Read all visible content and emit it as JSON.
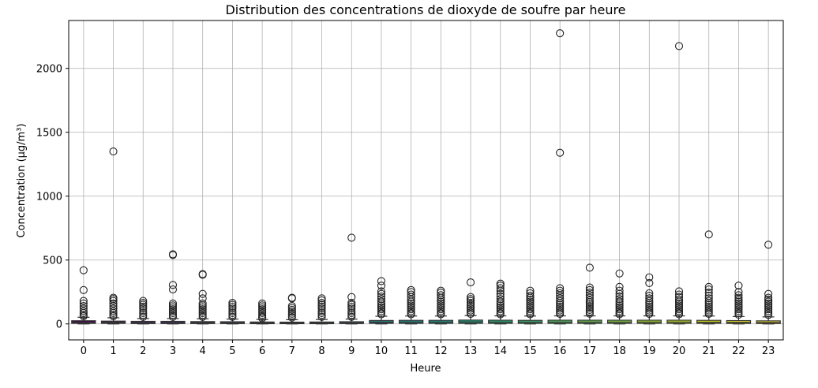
{
  "chart_data": {
    "type": "box",
    "title": "Distribution des concentrations de dioxyde de soufre par heure",
    "xlabel": "Heure",
    "ylabel": "Concentration (µg/m³)",
    "ylim": [
      -125,
      2375
    ],
    "yticks": [
      0,
      500,
      1000,
      1500,
      2000
    ],
    "grid": true,
    "categories": [
      "0",
      "1",
      "2",
      "3",
      "4",
      "5",
      "6",
      "7",
      "8",
      "9",
      "10",
      "11",
      "12",
      "13",
      "14",
      "15",
      "16",
      "17",
      "18",
      "19",
      "20",
      "21",
      "22",
      "23"
    ],
    "colors": [
      "#44014f",
      "#470e5e",
      "#481b6d",
      "#472a79",
      "#443782",
      "#3e4a89",
      "#39568c",
      "#33638d",
      "#2e6e8e",
      "#297a8e",
      "#25838d",
      "#218f8c",
      "#1f998a",
      "#22a884",
      "#2db27d",
      "#3dbc74",
      "#53c567",
      "#6ece58",
      "#8ad547",
      "#a8db34",
      "#c3e02a",
      "#dde318",
      "#f0e51c",
      "#fde725"
    ],
    "boxes": [
      {
        "q1": 5,
        "median": 12,
        "q3": 25,
        "whisker_low": 0,
        "whisker_high": 52,
        "outliers": [
          420,
          265,
          180,
          160,
          140,
          120,
          100,
          85,
          70,
          60
        ]
      },
      {
        "q1": 5,
        "median": 13,
        "q3": 22,
        "whisker_low": 0,
        "whisker_high": 48,
        "outliers": [
          1350,
          205,
          195,
          180,
          160,
          140,
          120,
          100,
          85,
          70,
          60
        ]
      },
      {
        "q1": 3,
        "median": 10,
        "q3": 20,
        "whisker_low": 0,
        "whisker_high": 42,
        "outliers": [
          180,
          165,
          150,
          135,
          120,
          100,
          85,
          70,
          55
        ]
      },
      {
        "q1": 3,
        "median": 10,
        "q3": 20,
        "whisker_low": 0,
        "whisker_high": 42,
        "outliers": [
          545,
          540,
          305,
          270,
          160,
          145,
          130,
          115,
          100,
          85,
          70,
          55
        ]
      },
      {
        "q1": 3,
        "median": 10,
        "q3": 18,
        "whisker_low": 0,
        "whisker_high": 40,
        "outliers": [
          390,
          385,
          235,
          200,
          160,
          145,
          130,
          115,
          100,
          85,
          70,
          55
        ]
      },
      {
        "q1": 3,
        "median": 9,
        "q3": 17,
        "whisker_low": 0,
        "whisker_high": 38,
        "outliers": [
          165,
          150,
          135,
          120,
          100,
          85,
          70,
          55
        ]
      },
      {
        "q1": 2,
        "median": 7,
        "q3": 15,
        "whisker_low": 0,
        "whisker_high": 35,
        "outliers": [
          160,
          145,
          130,
          115,
          100,
          85,
          70,
          55,
          45
        ]
      },
      {
        "q1": 2,
        "median": 7,
        "q3": 14,
        "whisker_low": 0,
        "whisker_high": 33,
        "outliers": [
          205,
          200,
          140,
          125,
          110,
          95,
          80,
          65,
          50
        ]
      },
      {
        "q1": 2,
        "median": 8,
        "q3": 15,
        "whisker_low": 0,
        "whisker_high": 35,
        "outliers": [
          200,
          185,
          165,
          150,
          135,
          120,
          100,
          85,
          70,
          55
        ]
      },
      {
        "q1": 3,
        "median": 9,
        "q3": 17,
        "whisker_low": 0,
        "whisker_high": 38,
        "outliers": [
          675,
          210,
          165,
          150,
          135,
          120,
          100,
          85,
          70,
          55
        ]
      },
      {
        "q1": 5,
        "median": 14,
        "q3": 27,
        "whisker_low": 0,
        "whisker_high": 60,
        "outliers": [
          335,
          300,
          255,
          235,
          215,
          195,
          175,
          160,
          145,
          130,
          115,
          100,
          85,
          75
        ]
      },
      {
        "q1": 5,
        "median": 15,
        "q3": 28,
        "whisker_low": 0,
        "whisker_high": 62,
        "outliers": [
          265,
          250,
          230,
          210,
          190,
          175,
          160,
          145,
          130,
          115,
          100,
          85,
          75
        ]
      },
      {
        "q1": 5,
        "median": 15,
        "q3": 28,
        "whisker_low": 0,
        "whisker_high": 62,
        "outliers": [
          260,
          245,
          225,
          205,
          190,
          175,
          160,
          145,
          130,
          115,
          100,
          85,
          75
        ]
      },
      {
        "q1": 5,
        "median": 16,
        "q3": 30,
        "whisker_low": 0,
        "whisker_high": 65,
        "outliers": [
          325,
          210,
          195,
          180,
          165,
          150,
          135,
          120,
          105,
          90,
          78
        ]
      },
      {
        "q1": 5,
        "median": 15,
        "q3": 29,
        "whisker_low": 0,
        "whisker_high": 63,
        "outliers": [
          315,
          300,
          280,
          260,
          235,
          215,
          195,
          175,
          160,
          145,
          130,
          115,
          100,
          85,
          75
        ]
      },
      {
        "q1": 5,
        "median": 15,
        "q3": 28,
        "whisker_low": 0,
        "whisker_high": 62,
        "outliers": [
          260,
          240,
          220,
          205,
          190,
          175,
          160,
          145,
          130,
          115,
          100,
          85,
          75
        ]
      },
      {
        "q1": 5,
        "median": 15,
        "q3": 29,
        "whisker_low": 0,
        "whisker_high": 63,
        "outliers": [
          2275,
          1340,
          280,
          260,
          240,
          220,
          200,
          180,
          165,
          150,
          135,
          120,
          105,
          90,
          78
        ]
      },
      {
        "q1": 5,
        "median": 15,
        "q3": 29,
        "whisker_low": 0,
        "whisker_high": 63,
        "outliers": [
          440,
          285,
          265,
          245,
          225,
          205,
          185,
          170,
          155,
          140,
          125,
          110,
          95,
          80
        ]
      },
      {
        "q1": 5,
        "median": 15,
        "q3": 29,
        "whisker_low": 0,
        "whisker_high": 63,
        "outliers": [
          395,
          290,
          260,
          235,
          215,
          195,
          175,
          160,
          145,
          130,
          115,
          100,
          85,
          75
        ]
      },
      {
        "q1": 5,
        "median": 15,
        "q3": 29,
        "whisker_low": 0,
        "whisker_high": 63,
        "outliers": [
          365,
          320,
          240,
          220,
          200,
          180,
          165,
          150,
          135,
          120,
          105,
          90,
          78
        ]
      },
      {
        "q1": 5,
        "median": 15,
        "q3": 29,
        "whisker_low": 0,
        "whisker_high": 63,
        "outliers": [
          2175,
          255,
          230,
          210,
          190,
          175,
          160,
          145,
          130,
          115,
          100,
          85,
          75
        ]
      },
      {
        "q1": 5,
        "median": 14,
        "q3": 28,
        "whisker_low": 0,
        "whisker_high": 62,
        "outliers": [
          700,
          290,
          270,
          245,
          220,
          200,
          180,
          165,
          150,
          135,
          120,
          105,
          90,
          78
        ]
      },
      {
        "q1": 4,
        "median": 13,
        "q3": 26,
        "whisker_low": 0,
        "whisker_high": 58,
        "outliers": [
          300,
          250,
          225,
          205,
          190,
          175,
          160,
          145,
          130,
          115,
          100,
          85,
          72
        ]
      },
      {
        "q1": 4,
        "median": 12,
        "q3": 24,
        "whisker_low": 0,
        "whisker_high": 55,
        "outliers": [
          620,
          235,
          205,
          190,
          175,
          160,
          145,
          130,
          115,
          100,
          85,
          70
        ]
      }
    ]
  }
}
